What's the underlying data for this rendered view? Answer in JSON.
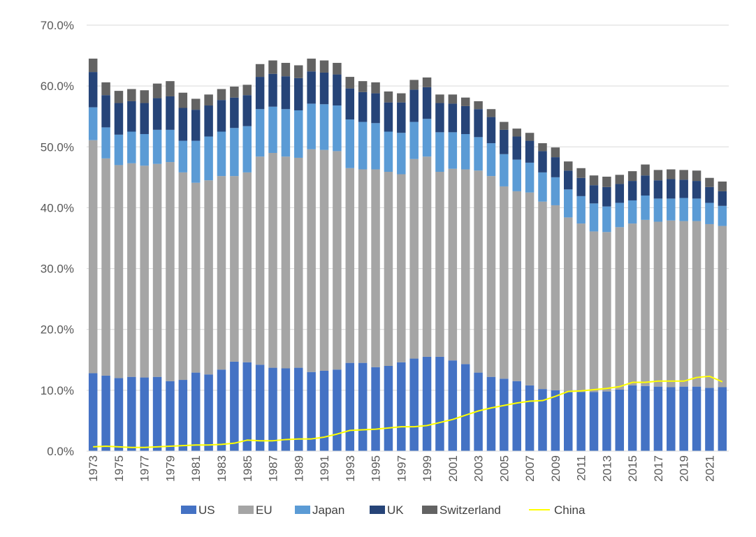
{
  "chart_data": {
    "type": "bar",
    "stacked": true,
    "categories": [
      "1973",
      "1974",
      "1975",
      "1976",
      "1977",
      "1978",
      "1979",
      "1980",
      "1981",
      "1982",
      "1983",
      "1984",
      "1985",
      "1986",
      "1987",
      "1988",
      "1989",
      "1990",
      "1991",
      "1992",
      "1993",
      "1994",
      "1995",
      "1996",
      "1997",
      "1998",
      "1999",
      "2000",
      "2001",
      "2002",
      "2003",
      "2004",
      "2005",
      "2006",
      "2007",
      "2008",
      "2009",
      "2010",
      "2011",
      "2012",
      "2013",
      "2014",
      "2015",
      "2016",
      "2017",
      "2018",
      "2019",
      "2020",
      "2021",
      "2022"
    ],
    "x_tick_labels": [
      "1973",
      "1975",
      "1977",
      "1979",
      "1981",
      "1983",
      "1985",
      "1987",
      "1989",
      "1991",
      "1993",
      "1995",
      "1997",
      "1999",
      "2001",
      "2003",
      "2005",
      "2007",
      "2009",
      "2011",
      "2013",
      "2015",
      "2017",
      "2019",
      "2021"
    ],
    "y_tick_labels": [
      "0.0%",
      "10.0%",
      "20.0%",
      "30.0%",
      "40.0%",
      "50.0%",
      "60.0%",
      "70.0%"
    ],
    "ylim": [
      0,
      70
    ],
    "grid": true,
    "legend_position": "bottom",
    "series": [
      {
        "name": "US",
        "color": "#4472C4",
        "values": [
          12.8,
          12.4,
          12.0,
          12.2,
          12.1,
          12.2,
          11.5,
          11.7,
          12.9,
          12.6,
          13.4,
          14.7,
          14.6,
          14.2,
          13.7,
          13.6,
          13.7,
          13.0,
          13.2,
          13.4,
          14.5,
          14.5,
          13.8,
          14.0,
          14.6,
          15.2,
          15.5,
          15.5,
          14.9,
          14.3,
          12.9,
          12.2,
          11.9,
          11.5,
          10.8,
          10.2,
          10.0,
          9.8,
          9.7,
          9.7,
          9.8,
          10.1,
          10.8,
          10.7,
          10.6,
          10.5,
          10.6,
          10.6,
          10.4,
          10.5
        ]
      },
      {
        "name": "EU",
        "color": "#A5A5A5",
        "values": [
          38.3,
          35.7,
          35.0,
          35.1,
          34.8,
          35.0,
          36.0,
          34.1,
          31.2,
          31.9,
          31.8,
          30.5,
          31.2,
          34.2,
          35.3,
          34.8,
          34.5,
          36.6,
          36.3,
          35.9,
          32.0,
          31.8,
          32.5,
          31.9,
          30.9,
          32.8,
          32.9,
          30.4,
          31.5,
          32.0,
          33.2,
          33.0,
          31.6,
          31.2,
          31.7,
          30.8,
          30.4,
          28.6,
          27.7,
          26.4,
          26.2,
          26.7,
          26.6,
          27.3,
          27.1,
          27.4,
          27.2,
          27.2,
          26.9,
          26.5
        ]
      },
      {
        "name": "Japan",
        "color": "#5B9BD5",
        "values": [
          5.4,
          5.1,
          5.0,
          5.2,
          5.2,
          5.6,
          5.3,
          5.2,
          6.9,
          7.2,
          7.3,
          7.9,
          7.6,
          7.8,
          7.6,
          7.8,
          7.8,
          7.5,
          7.5,
          7.5,
          8.0,
          7.8,
          7.6,
          6.6,
          6.8,
          6.1,
          6.2,
          6.5,
          6.0,
          5.8,
          5.5,
          5.4,
          5.3,
          5.2,
          4.9,
          4.8,
          4.6,
          4.6,
          4.5,
          4.6,
          4.2,
          4.0,
          3.8,
          4.0,
          3.8,
          3.6,
          3.8,
          3.7,
          3.5,
          3.3
        ]
      },
      {
        "name": "UK",
        "color": "#264478",
        "values": [
          5.8,
          5.3,
          5.2,
          5.0,
          5.1,
          5.2,
          5.5,
          5.4,
          5.1,
          5.1,
          5.2,
          5.0,
          5.1,
          5.3,
          5.4,
          5.4,
          5.3,
          5.3,
          5.2,
          5.1,
          5.1,
          4.9,
          4.9,
          4.8,
          5.0,
          5.3,
          5.2,
          4.8,
          4.7,
          4.6,
          4.6,
          4.3,
          4.0,
          3.8,
          3.6,
          3.5,
          3.3,
          3.1,
          3.0,
          3.0,
          3.2,
          3.1,
          3.2,
          3.3,
          3.0,
          3.2,
          3.0,
          2.9,
          2.6,
          2.4
        ]
      },
      {
        "name": "Switzerland",
        "color": "#636363",
        "values": [
          2.2,
          2.1,
          2.0,
          2.0,
          2.1,
          2.4,
          2.5,
          2.5,
          1.8,
          1.8,
          1.8,
          1.8,
          1.7,
          2.1,
          2.2,
          2.2,
          2.1,
          2.1,
          2.0,
          1.9,
          1.9,
          1.8,
          1.8,
          1.8,
          1.5,
          1.6,
          1.6,
          1.4,
          1.5,
          1.4,
          1.3,
          1.3,
          1.3,
          1.3,
          1.3,
          1.3,
          1.6,
          1.5,
          1.6,
          1.6,
          1.7,
          1.5,
          1.6,
          1.8,
          1.7,
          1.6,
          1.6,
          1.7,
          1.5,
          1.6
        ]
      },
      {
        "name": "China",
        "type": "line",
        "color": "#FFFF00",
        "values": [
          0.7,
          0.8,
          0.7,
          0.6,
          0.6,
          0.7,
          0.8,
          0.9,
          1.0,
          1.0,
          1.1,
          1.3,
          1.8,
          1.7,
          1.7,
          1.9,
          2.0,
          2.0,
          2.3,
          2.8,
          3.4,
          3.5,
          3.6,
          3.8,
          4.0,
          4.0,
          4.2,
          4.7,
          5.2,
          5.9,
          6.6,
          7.1,
          7.5,
          7.9,
          8.2,
          8.3,
          9.0,
          9.8,
          9.9,
          10.1,
          10.3,
          10.6,
          11.3,
          11.3,
          11.5,
          11.5,
          11.5,
          12.1,
          12.3,
          11.4
        ]
      }
    ]
  }
}
